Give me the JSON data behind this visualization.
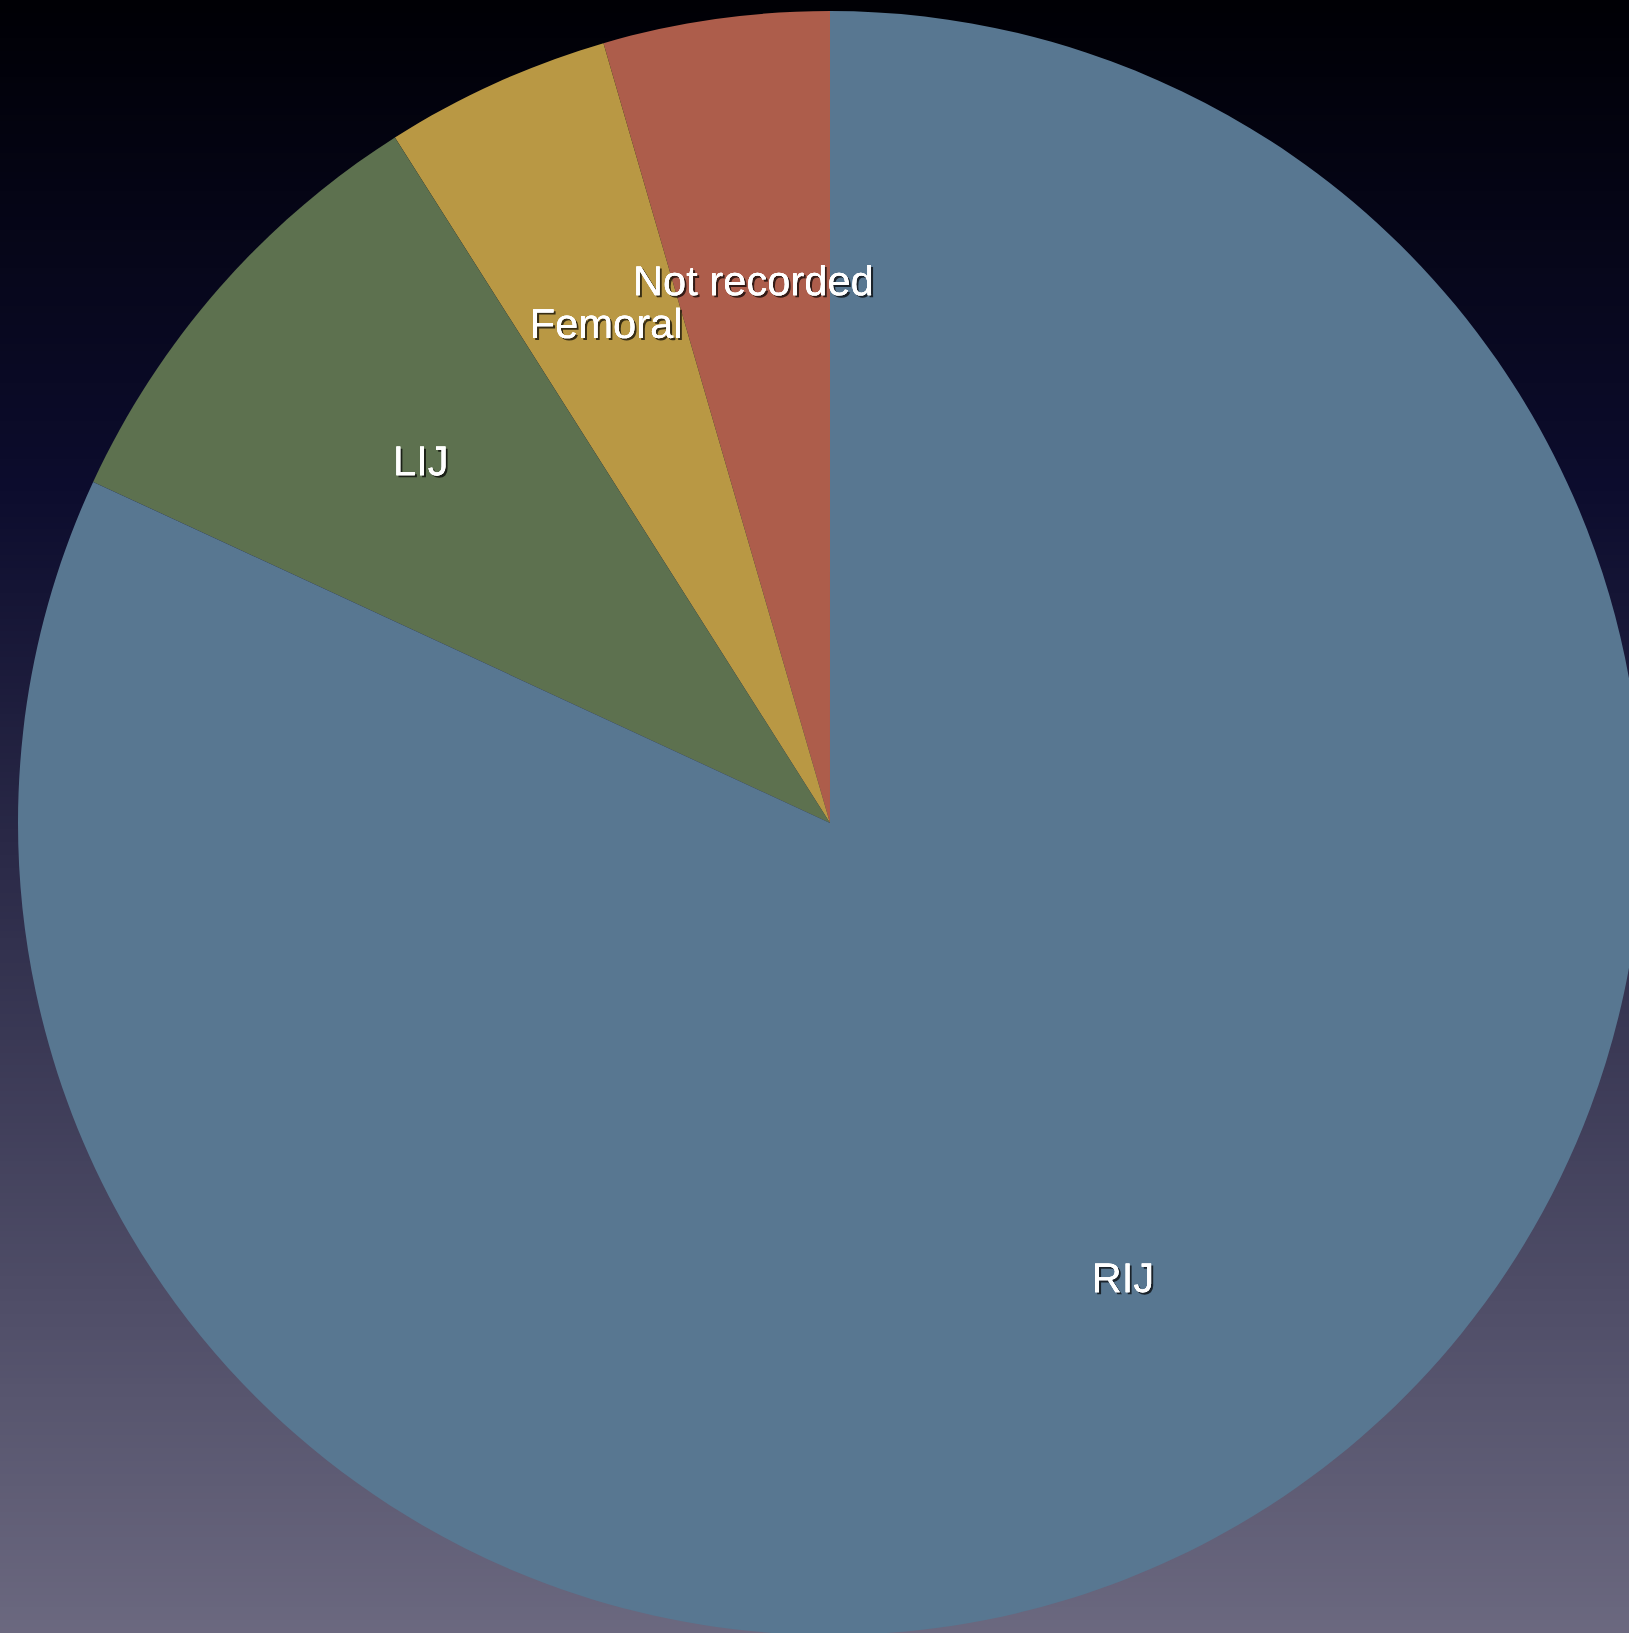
{
  "chart_data": {
    "type": "pie",
    "categories": [
      "Not recorded",
      "Femoral",
      "LIJ",
      "RIJ"
    ],
    "values": [
      4.5,
      4.5,
      9.1,
      81.9
    ],
    "colors": [
      "#ad5d4b",
      "#b99844",
      "#5d714f",
      "#587791"
    ]
  }
}
